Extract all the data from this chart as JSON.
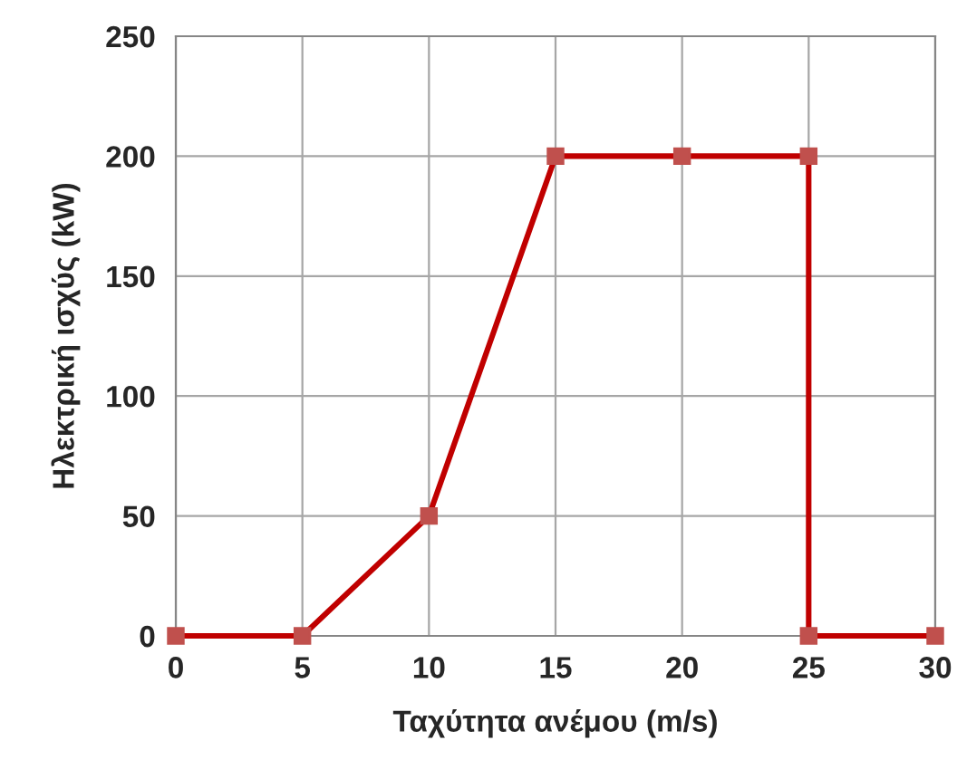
{
  "chart_data": {
    "type": "line",
    "xlabel": "Ταχύτητα ανέμου (m/s)",
    "ylabel": "Ηλεκτρική ισχύς (kW)",
    "x": [
      0,
      5,
      10,
      15,
      20,
      25,
      25,
      30
    ],
    "series": [
      {
        "color": "#c00000",
        "values": [
          0,
          0,
          50,
          200,
          200,
          200,
          0,
          0
        ]
      }
    ],
    "xlim": [
      0,
      30
    ],
    "xticks": [
      0,
      5,
      10,
      15,
      20,
      25,
      30
    ],
    "ylim": [
      0,
      250
    ],
    "yticks": [
      0,
      50,
      100,
      150,
      200,
      250
    ],
    "grid": true,
    "marker": "square",
    "line_style": "solid"
  }
}
